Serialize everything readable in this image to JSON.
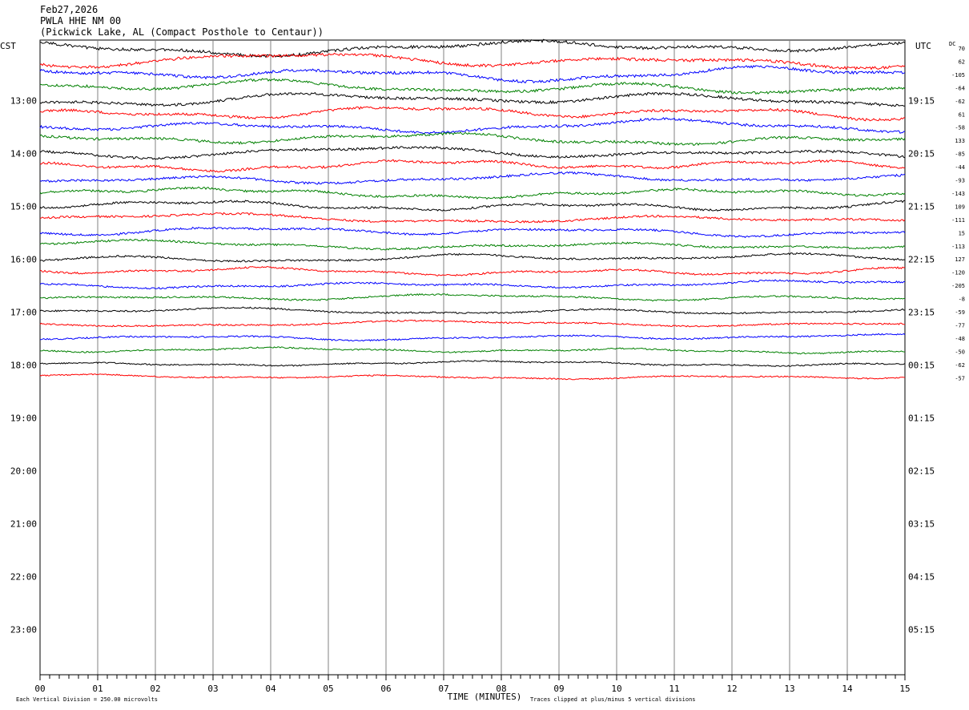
{
  "header": {
    "date": "Feb27,2026",
    "station": "PWLA HHE NM 00",
    "location": "(Pickwick Lake, AL (Compact Posthole to Centaur))"
  },
  "chart_data": {
    "type": "line",
    "subtype": "helicorder",
    "left_axis_label": "CST",
    "right_axis_label": "UTC",
    "dc_label": "DC",
    "xlabel": "TIME (MINUTES)",
    "x_ticks": [
      "00",
      "01",
      "02",
      "03",
      "04",
      "05",
      "06",
      "07",
      "08",
      "09",
      "10",
      "11",
      "12",
      "13",
      "14",
      "15"
    ],
    "xlim": [
      0,
      15
    ],
    "left_hours": [
      "13:00",
      "14:00",
      "15:00",
      "16:00",
      "17:00",
      "18:00",
      "19:00",
      "20:00",
      "21:00",
      "22:00",
      "23:00"
    ],
    "right_hours": [
      "19:15",
      "20:15",
      "21:15",
      "22:15",
      "23:15",
      "00:15",
      "01:15",
      "02:15",
      "03:15",
      "04:15",
      "05:15"
    ],
    "dc_offsets": [
      "70",
      "62",
      "-105",
      "-64",
      "-62",
      "61",
      "-58",
      "133",
      "-85",
      "-44",
      "-93",
      "-143",
      "109",
      "-111",
      "15",
      "-113",
      "127",
      "-120",
      "-205",
      "-8",
      "-59",
      "-77",
      "-48",
      "-50",
      "-62",
      "-57"
    ],
    "trace_colors": [
      "#000000",
      "#ff0000",
      "#0000ff",
      "#008000"
    ],
    "footer_left": "Each Vertical Division =  250.00 microvolts",
    "footer_right": "Traces clipped at plus/minus 5 vertical divisions",
    "grid": true
  }
}
